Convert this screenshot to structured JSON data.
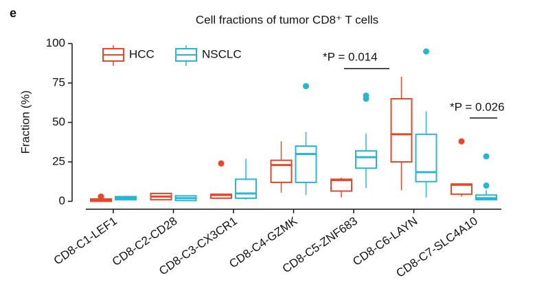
{
  "panel_label": "e",
  "chart_data": {
    "type": "box",
    "title": "Cell fractions of tumor CD8⁺ T cells",
    "y_label": "Fraction (%)",
    "categories": [
      "CD8-C1-LEF1",
      "CD8-C2-CD28",
      "CD8-C3-CX3CR1",
      "CD8-C4-GZMK",
      "CD8-C5-ZNF683",
      "CD8-C6-LAYN",
      "CD8-C7-SLC4A10"
    ],
    "ylim": [
      -5,
      105
    ],
    "yticks": [
      0,
      25,
      50,
      75,
      100
    ],
    "legend": "top-left",
    "series": [
      {
        "name": "HCC",
        "color": "#e8472a",
        "boxes": [
          {
            "min": 0,
            "q1": 0,
            "median": 0.5,
            "q3": 1.5,
            "max": 2,
            "outliers": [
              3
            ]
          },
          {
            "min": 1,
            "q1": 1,
            "median": 3,
            "q3": 5,
            "max": 5,
            "outliers": []
          },
          {
            "min": 2,
            "q1": 2,
            "median": 4,
            "q3": 4.5,
            "max": 5,
            "outliers": [
              24
            ]
          },
          {
            "min": 5.5,
            "q1": 12,
            "median": 23,
            "q3": 26,
            "max": 38,
            "outliers": []
          },
          {
            "min": 2.5,
            "q1": 6.5,
            "median": 13.5,
            "q3": 14,
            "max": 15,
            "outliers": []
          },
          {
            "min": 7,
            "q1": 25,
            "median": 42.5,
            "q3": 65,
            "max": 79,
            "outliers": []
          },
          {
            "min": 3,
            "q1": 4.5,
            "median": 10.5,
            "q3": 11,
            "max": 11,
            "outliers": [
              38
            ]
          }
        ]
      },
      {
        "name": "NSCLC",
        "color": "#29b5d0",
        "boxes": [
          {
            "min": 0.5,
            "q1": 1,
            "median": 2,
            "q3": 3,
            "max": 3.5,
            "outliers": []
          },
          {
            "min": 0.5,
            "q1": 0.5,
            "median": 2,
            "q3": 3.5,
            "max": 3.5,
            "outliers": []
          },
          {
            "min": 1,
            "q1": 2,
            "median": 5,
            "q3": 14,
            "max": 27,
            "outliers": []
          },
          {
            "min": 4,
            "q1": 12,
            "median": 30,
            "q3": 35,
            "max": 44,
            "outliers": [
              73
            ]
          },
          {
            "min": 8.5,
            "q1": 21,
            "median": 28,
            "q3": 32,
            "max": 43,
            "outliers": [
              65,
              67
            ]
          },
          {
            "min": 2.5,
            "q1": 12.5,
            "median": 18.5,
            "q3": 42.5,
            "max": 57,
            "outliers": [
              95
            ]
          },
          {
            "min": 1,
            "q1": 1,
            "median": 2,
            "q3": 4,
            "max": 7,
            "outliers": [
              10,
              28.5
            ]
          }
        ]
      }
    ],
    "annotations": [
      "*P = 0.014",
      "*P = 0.026"
    ]
  }
}
